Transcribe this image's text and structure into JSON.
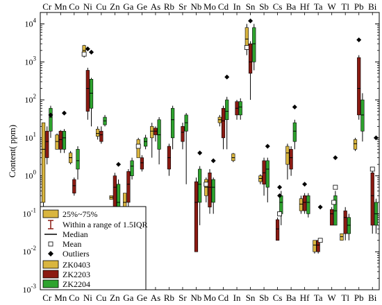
{
  "chart_data": {
    "type": "box",
    "ylabel": "Content(   ppm)",
    "yscale": "log",
    "ylim": [
      0.001,
      20000
    ],
    "yticks": [
      {
        "value": 0.001,
        "base": "10",
        "exp": "-3"
      },
      {
        "value": 0.01,
        "base": "10",
        "exp": "-2"
      },
      {
        "value": 0.1,
        "base": "10",
        "exp": "-1"
      },
      {
        "value": 1,
        "base": "10",
        "exp": "0"
      },
      {
        "value": 10,
        "base": "10",
        "exp": "1"
      },
      {
        "value": 100,
        "base": "10",
        "exp": "2"
      },
      {
        "value": 1000,
        "base": "10",
        "exp": "3"
      },
      {
        "value": 10000,
        "base": "10",
        "exp": "4"
      }
    ],
    "categories": [
      "Cr",
      "Mn",
      "Co",
      "Ni",
      "Cu",
      "Zn",
      "Ga",
      "Ge",
      "As",
      "Rb",
      "Sr",
      "Nb",
      "Mo",
      "Cd",
      "In",
      "Sn",
      "Sb",
      "Cs",
      "Ba",
      "Hf",
      "Ta",
      "W",
      "Tl",
      "Pb",
      "Bi"
    ],
    "grid": false,
    "legend_position": "bottom-left",
    "legend": {
      "iqr": "25%~75%",
      "whisker": "Within a range of 1.5IQR",
      "median": "Median",
      "mean": "Mean",
      "outliers": "Outliers"
    },
    "series": [
      {
        "name": "ZK0403",
        "color": "#d9b53f",
        "boxes": [
          {
            "category": "Cr",
            "q1": 0.2,
            "q3": 25,
            "median": 5,
            "wlo": 0.15,
            "whi": 25,
            "mean": null,
            "outliers": []
          },
          {
            "category": "Mn",
            "q1": 5,
            "q3": 12,
            "median": 8,
            "wlo": 5,
            "whi": 13,
            "mean": null,
            "outliers": []
          },
          {
            "category": "Co",
            "q1": 2.2,
            "q3": 4,
            "median": 3,
            "wlo": 2,
            "whi": 4.5,
            "mean": null,
            "outliers": []
          },
          {
            "category": "Ni",
            "q1": 1500,
            "q3": 2700,
            "median": 2000,
            "wlo": 1300,
            "whi": 2800,
            "mean": 1600,
            "outliers": []
          },
          {
            "category": "Cu",
            "q1": 11,
            "q3": 17,
            "median": 13,
            "wlo": 9,
            "whi": 20,
            "mean": null,
            "outliers": []
          },
          {
            "category": "Zn",
            "q1": 0.24,
            "q3": 0.3,
            "median": 0.27,
            "wlo": 0.24,
            "whi": 0.3,
            "mean": null,
            "outliers": []
          },
          {
            "category": "Ga",
            "q1": 0.12,
            "q3": 0.35,
            "median": 0.2,
            "wlo": 0.12,
            "whi": 0.35,
            "mean": null,
            "outliers": []
          },
          {
            "category": "Ge",
            "q1": 3,
            "q3": 9,
            "median": 6,
            "wlo": 3,
            "whi": 10,
            "mean": 6,
            "outliers": []
          },
          {
            "category": "As",
            "q1": 10,
            "q3": 20,
            "median": 15,
            "wlo": 3,
            "whi": 25,
            "mean": null,
            "outliers": []
          },
          {
            "category": "Mo",
            "q1": 0.3,
            "q3": 0.8,
            "median": 0.5,
            "wlo": 0.2,
            "whi": 0.9,
            "mean": 0.6,
            "outliers": []
          },
          {
            "category": "Cd",
            "q1": 25,
            "q3": 35,
            "median": 30,
            "wlo": 20,
            "whi": 40,
            "mean": null,
            "outliers": []
          },
          {
            "category": "In",
            "q1": 2.5,
            "q3": 3.8,
            "median": 3,
            "wlo": 2.3,
            "whi": 4,
            "mean": null,
            "outliers": []
          },
          {
            "category": "Sn",
            "q1": 2500,
            "q3": 8000,
            "median": 4000,
            "wlo": 1500,
            "whi": 10000,
            "mean": 2400,
            "outliers": []
          },
          {
            "category": "Sb",
            "q1": 0.7,
            "q3": 1,
            "median": 0.85,
            "wlo": 0.6,
            "whi": 1.1,
            "mean": null,
            "outliers": []
          },
          {
            "category": "Ba",
            "q1": 2,
            "q3": 6,
            "median": 4,
            "wlo": 0.8,
            "whi": 7,
            "mean": null,
            "outliers": []
          },
          {
            "category": "Hf",
            "q1": 0.12,
            "q3": 0.25,
            "median": 0.18,
            "wlo": 0.1,
            "whi": 0.3,
            "mean": null,
            "outliers": []
          },
          {
            "category": "Ta",
            "q1": 0.01,
            "q3": 0.02,
            "median": 0.015,
            "wlo": 0.009,
            "whi": 0.02,
            "mean": null,
            "outliers": []
          },
          {
            "category": "Tl",
            "q1": 0.02,
            "q3": 0.03,
            "median": 0.025,
            "wlo": 0.02,
            "whi": 0.03,
            "mean": null,
            "outliers": []
          },
          {
            "category": "Pb",
            "q1": 5,
            "q3": 9,
            "median": 7,
            "wlo": 4.5,
            "whi": 10,
            "mean": null,
            "outliers": []
          }
        ]
      },
      {
        "name": "ZK2203",
        "color": "#8b1a12",
        "boxes": [
          {
            "category": "Cr",
            "q1": 3,
            "q3": 15,
            "median": 8,
            "wlo": 2,
            "whi": 20,
            "mean": null,
            "outliers": []
          },
          {
            "category": "Mn",
            "q1": 5,
            "q3": 15,
            "median": 9,
            "wlo": 4,
            "whi": 16,
            "mean": null,
            "outliers": []
          },
          {
            "category": "Co",
            "q1": 0.35,
            "q3": 0.8,
            "median": 0.55,
            "wlo": 0.3,
            "whi": 0.9,
            "mean": null,
            "outliers": []
          },
          {
            "category": "Ni",
            "q1": 50,
            "q3": 600,
            "median": 200,
            "wlo": 30,
            "whi": 700,
            "mean": null,
            "outliers": [
              2200
            ]
          },
          {
            "category": "Cu",
            "q1": 8,
            "q3": 15,
            "median": 12,
            "wlo": 7,
            "whi": 20,
            "mean": null,
            "outliers": []
          },
          {
            "category": "Zn",
            "q1": 0.1,
            "q3": 1,
            "median": 0.5,
            "wlo": 0.05,
            "whi": 1.2,
            "mean": null,
            "outliers": []
          },
          {
            "category": "Ga",
            "q1": 0.2,
            "q3": 1.3,
            "median": 0.6,
            "wlo": 0.1,
            "whi": 1.5,
            "mean": null,
            "outliers": []
          },
          {
            "category": "Ge",
            "q1": 1.5,
            "q3": 3,
            "median": 2.2,
            "wlo": 1.3,
            "whi": 3.5,
            "mean": null,
            "outliers": []
          },
          {
            "category": "As",
            "q1": 12,
            "q3": 18,
            "median": 15,
            "wlo": 8,
            "whi": 20,
            "mean": null,
            "outliers": []
          },
          {
            "category": "Rb",
            "q1": 1.5,
            "q3": 6,
            "median": 3,
            "wlo": 1,
            "whi": 7,
            "mean": null,
            "outliers": []
          },
          {
            "category": "Sr",
            "q1": 8,
            "q3": 20,
            "median": 14,
            "wlo": 5,
            "whi": 25,
            "mean": null,
            "outliers": []
          },
          {
            "category": "Nb",
            "q1": 0.01,
            "q3": 0.7,
            "median": 0.2,
            "wlo": 0.01,
            "whi": 0.9,
            "mean": null,
            "outliers": []
          },
          {
            "category": "Mo",
            "q1": 0.15,
            "q3": 1.2,
            "median": 0.5,
            "wlo": 0.1,
            "whi": 1.5,
            "mean": null,
            "outliers": []
          },
          {
            "category": "Cd",
            "q1": 10,
            "q3": 60,
            "median": 28,
            "wlo": 5,
            "whi": 70,
            "mean": null,
            "outliers": []
          },
          {
            "category": "In",
            "q1": 40,
            "q3": 90,
            "median": 60,
            "wlo": 30,
            "whi": 100,
            "mean": null,
            "outliers": []
          },
          {
            "category": "Sn",
            "q1": 500,
            "q3": 3000,
            "median": 1000,
            "wlo": 100,
            "whi": 3500,
            "mean": null,
            "outliers": [
              12000
            ]
          },
          {
            "category": "Sb",
            "q1": 0.6,
            "q3": 2.5,
            "median": 1.2,
            "wlo": 0.3,
            "whi": 3,
            "mean": null,
            "outliers": []
          },
          {
            "category": "Cs",
            "q1": 0.02,
            "q3": 0.07,
            "median": 0.04,
            "wlo": 0.02,
            "whi": 0.08,
            "mean": null,
            "outliers": []
          },
          {
            "category": "Ba",
            "q1": 1.5,
            "q3": 5,
            "median": 3,
            "wlo": 1,
            "whi": 6,
            "mean": null,
            "outliers": []
          },
          {
            "category": "Hf",
            "q1": 0.12,
            "q3": 0.3,
            "median": 0.2,
            "wlo": 0.1,
            "whi": 0.35,
            "mean": null,
            "outliers": [
              0.6
            ]
          },
          {
            "category": "Ta",
            "q1": 0.01,
            "q3": 0.02,
            "median": 0.015,
            "wlo": 0.009,
            "whi": 0.02,
            "mean": null,
            "outliers": []
          },
          {
            "category": "W",
            "q1": 0.05,
            "q3": 0.13,
            "median": 0.1,
            "wlo": 0.05,
            "whi": 0.15,
            "mean": null,
            "outliers": []
          },
          {
            "category": "Tl",
            "q1": 0.03,
            "q3": 0.12,
            "median": 0.08,
            "wlo": 0.02,
            "whi": 0.15,
            "mean": null,
            "outliers": []
          },
          {
            "category": "Pb",
            "q1": 40,
            "q3": 1300,
            "median": 200,
            "wlo": 30,
            "whi": 1500,
            "mean": null,
            "outliers": [
              3800
            ]
          },
          {
            "category": "Bi",
            "q1": 0.05,
            "q3": 1.2,
            "median": 0.3,
            "wlo": 0.03,
            "whi": 1.5,
            "mean": 1.5,
            "outliers": []
          }
        ]
      },
      {
        "name": "ZK2204",
        "color": "#2ea32e",
        "boxes": [
          {
            "category": "Cr",
            "q1": 15,
            "q3": 60,
            "median": 35,
            "wlo": 10,
            "whi": 70,
            "mean": null,
            "outliers": [
              40
            ]
          },
          {
            "category": "Mn",
            "q1": 5,
            "q3": 15,
            "median": 10,
            "wlo": 4,
            "whi": 17,
            "mean": null,
            "outliers": [
              45
            ]
          },
          {
            "category": "Co",
            "q1": 1.5,
            "q3": 5,
            "median": 2.5,
            "wlo": 0.8,
            "whi": 6,
            "mean": null,
            "outliers": []
          },
          {
            "category": "Ni",
            "q1": 60,
            "q3": 350,
            "median": 150,
            "wlo": 20,
            "whi": 380,
            "mean": null,
            "outliers": [
              1800
            ]
          },
          {
            "category": "Cu",
            "q1": 22,
            "q3": 35,
            "median": 28,
            "wlo": 20,
            "whi": 40,
            "mean": null,
            "outliers": []
          },
          {
            "category": "Zn",
            "q1": 0.06,
            "q3": 0.6,
            "median": 0.2,
            "wlo": 0.05,
            "whi": 0.8,
            "mean": null,
            "outliers": [
              2
            ]
          },
          {
            "category": "Ga",
            "q1": 1,
            "q3": 2.5,
            "median": 1.8,
            "wlo": 0.8,
            "whi": 3,
            "mean": null,
            "outliers": []
          },
          {
            "category": "Ge",
            "q1": 6,
            "q3": 10,
            "median": 8,
            "wlo": 5,
            "whi": 12,
            "mean": null,
            "outliers": []
          },
          {
            "category": "As",
            "q1": 5,
            "q3": 30,
            "median": 12,
            "wlo": 2,
            "whi": 35,
            "mean": null,
            "outliers": []
          },
          {
            "category": "Rb",
            "q1": 10,
            "q3": 60,
            "median": 30,
            "wlo": 5,
            "whi": 70,
            "mean": null,
            "outliers": []
          },
          {
            "category": "Sr",
            "q1": 15,
            "q3": 40,
            "median": 25,
            "wlo": 0.6,
            "whi": 45,
            "mean": null,
            "outliers": []
          },
          {
            "category": "Nb",
            "q1": 0.2,
            "q3": 1.5,
            "median": 0.6,
            "wlo": 0.05,
            "whi": 1.8,
            "mean": null,
            "outliers": [
              4
            ]
          },
          {
            "category": "Mo",
            "q1": 0.2,
            "q3": 0.8,
            "median": 0.5,
            "wlo": 0.1,
            "whi": 0.9,
            "mean": null,
            "outliers": [
              2.5
            ]
          },
          {
            "category": "Cd",
            "q1": 30,
            "q3": 100,
            "median": 50,
            "wlo": 5,
            "whi": 120,
            "mean": null,
            "outliers": [
              400
            ]
          },
          {
            "category": "In",
            "q1": 40,
            "q3": 90,
            "median": 65,
            "wlo": 30,
            "whi": 110,
            "mean": null,
            "outliers": []
          },
          {
            "category": "Sn",
            "q1": 1000,
            "q3": 8000,
            "median": 3000,
            "wlo": 600,
            "whi": 10000,
            "mean": null,
            "outliers": []
          },
          {
            "category": "Sb",
            "q1": 0.5,
            "q3": 2.5,
            "median": 1.5,
            "wlo": 0.2,
            "whi": 3,
            "mean": null,
            "outliers": [
              6
            ]
          },
          {
            "category": "Cs",
            "q1": 0.1,
            "q3": 0.3,
            "median": 0.2,
            "wlo": 0.05,
            "whi": 0.4,
            "mean": null,
            "outliers": []
          },
          {
            "category": "Ba",
            "q1": 8,
            "q3": 25,
            "median": 15,
            "wlo": 5,
            "whi": 30,
            "mean": null,
            "outliers": [
              65
            ]
          },
          {
            "category": "Hf",
            "q1": 0.1,
            "q3": 0.3,
            "median": 0.2,
            "wlo": 0.08,
            "whi": 0.35,
            "mean": null,
            "outliers": []
          },
          {
            "category": "W",
            "q1": 0.05,
            "q3": 0.3,
            "median": 0.12,
            "wlo": 0.05,
            "whi": 0.4,
            "mean": 0.5,
            "outliers": [
              3
            ]
          },
          {
            "category": "Tl",
            "q1": 0.03,
            "q3": 0.08,
            "median": 0.05,
            "wlo": 0.02,
            "whi": 0.1,
            "mean": null,
            "outliers": []
          },
          {
            "category": "Pb",
            "q1": 15,
            "q3": 100,
            "median": 40,
            "wlo": 8,
            "whi": 150,
            "mean": null,
            "outliers": []
          },
          {
            "category": "Bi",
            "q1": 0.05,
            "q3": 0.2,
            "median": 0.1,
            "wlo": 0.03,
            "whi": 0.25,
            "mean": null,
            "outliers": [
              10
            ]
          }
        ]
      }
    ],
    "extra_points": [
      {
        "category": "Cs",
        "kind": "outlier",
        "value": 0.5
      },
      {
        "category": "Cs",
        "kind": "outlier",
        "value": 0.3
      },
      {
        "category": "Cs",
        "kind": "mean",
        "value": 0.1
      },
      {
        "category": "Ta",
        "kind": "outlier",
        "value": 0.15
      },
      {
        "category": "Ta",
        "kind": "mean",
        "value": 0.02
      },
      {
        "category": "W",
        "kind": "mean",
        "value": 0.2
      }
    ]
  }
}
